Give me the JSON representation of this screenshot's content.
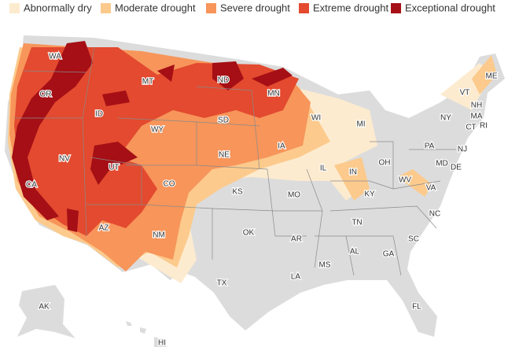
{
  "legend": [
    {
      "label": "Abnormally dry",
      "color": "#fdebcf"
    },
    {
      "label": "Moderate drought",
      "color": "#fcca8c"
    },
    {
      "label": "Severe drought",
      "color": "#f7955a"
    },
    {
      "label": "Extreme drought",
      "color": "#e34a2f"
    },
    {
      "label": "Exceptional drought",
      "color": "#a50f15"
    }
  ],
  "states": [
    "WA",
    "OR",
    "CA",
    "ID",
    "NV",
    "MT",
    "WY",
    "UT",
    "AZ",
    "CO",
    "NM",
    "ND",
    "SD",
    "NE",
    "KS",
    "OK",
    "TX",
    "MN",
    "IA",
    "MO",
    "AR",
    "LA",
    "WI",
    "IL",
    "MI",
    "IN",
    "OH",
    "KY",
    "TN",
    "MS",
    "AL",
    "GA",
    "FL",
    "SC",
    "NC",
    "VA",
    "WV",
    "PA",
    "NY",
    "MD",
    "DE",
    "NJ",
    "CT",
    "RI",
    "MA",
    "NH",
    "VT",
    "ME",
    "AK",
    "HI"
  ]
}
